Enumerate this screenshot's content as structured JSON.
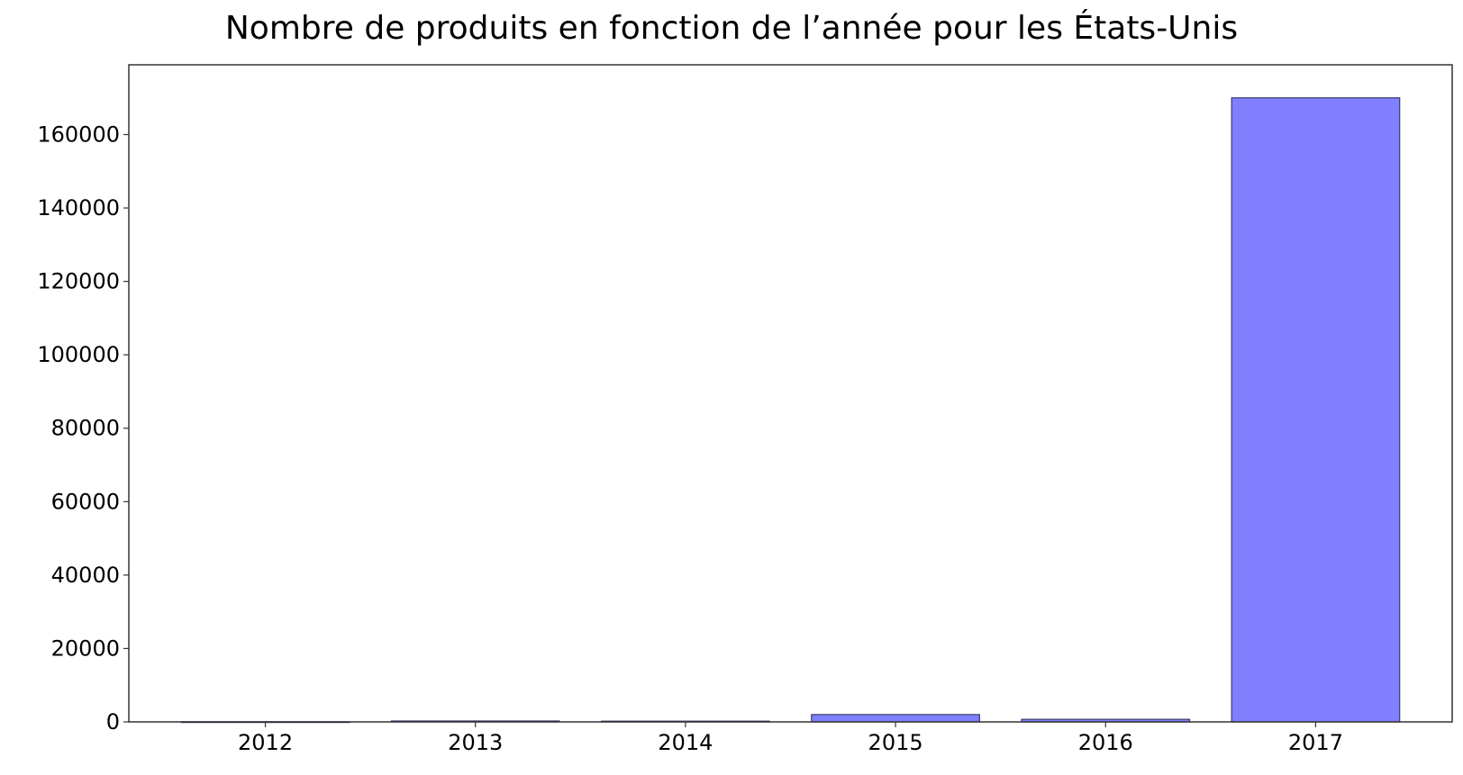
{
  "chart_data": {
    "type": "bar",
    "title": "Nombre de produits en fonction de l’année pour les États-Unis",
    "xlabel": "",
    "ylabel": "",
    "categories": [
      "2012",
      "2013",
      "2014",
      "2015",
      "2016",
      "2017"
    ],
    "values": [
      40,
      250,
      200,
      2000,
      700,
      170000
    ],
    "ylim": [
      0,
      179000
    ],
    "yticks": [
      0,
      20000,
      40000,
      60000,
      80000,
      100000,
      120000,
      140000,
      160000
    ],
    "bar_color": "#8080ff",
    "bar_edge_color": "#3a3a6a",
    "grid": false,
    "legend": "none"
  }
}
